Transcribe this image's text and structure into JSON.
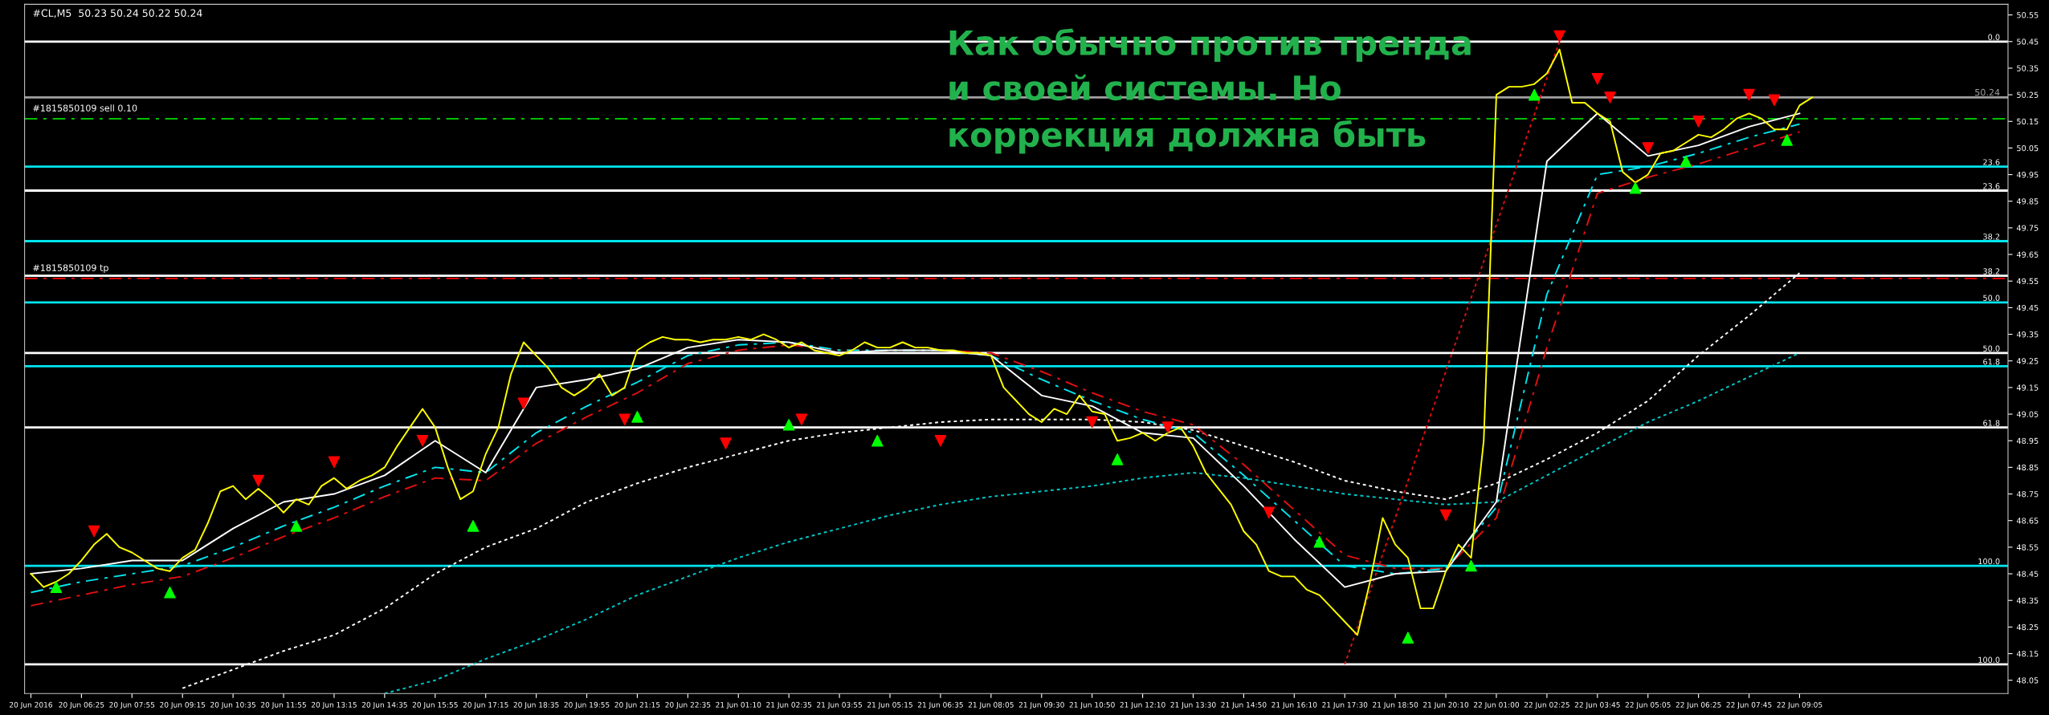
{
  "chart_data": {
    "type": "line",
    "title": "#CL,M5  50.23 50.24 50.22 50.24",
    "annotations": [
      "Как обычно против тренда\nи своей системы. Но\nкоррекция должна быть",
      {
        "text": "0.0",
        "y": 50.45
      },
      {
        "text": "23.6",
        "y": 49.89
      },
      {
        "text": "38.2",
        "y": 49.57
      },
      {
        "text": "50.0",
        "y": 49.28
      },
      {
        "text": "61.8",
        "y": 49.0
      },
      {
        "text": "100.0",
        "y": 48.11
      },
      {
        "text": "23.6",
        "y": 49.98
      },
      {
        "text": "38.2",
        "y": 49.7
      },
      {
        "text": "50.0",
        "y": 49.47
      },
      {
        "text": "61.8",
        "y": 49.23
      },
      {
        "text": "100.0",
        "y": 48.48
      }
    ],
    "categories": [
      "20 Jun 2016",
      null,
      null,
      null,
      "20 Jun 06:25",
      null,
      null,
      null,
      "20 Jun 07:55",
      null,
      null,
      null,
      "20 Jun 09:15",
      null,
      null,
      null,
      "20 Jun 10:35",
      null,
      null,
      null,
      "20 Jun 11:55",
      null,
      null,
      null,
      "20 Jun 13:15",
      null,
      null,
      null,
      "20 Jun 14:35",
      null,
      null,
      null,
      "20 Jun 15:55",
      null,
      null,
      null,
      "20 Jun 17:15",
      null,
      null,
      null,
      "20 Jun 18:35",
      null,
      null,
      null,
      "20 Jun 19:55",
      null,
      null,
      null,
      "20 Jun 21:15",
      null,
      null,
      null,
      "20 Jun 22:35",
      null,
      null,
      null,
      "21 Jun 01:10",
      null,
      null,
      null,
      "21 Jun 02:35",
      null,
      null,
      null,
      "21 Jun 03:55",
      null,
      null,
      null,
      "21 Jun 05:15",
      null,
      null,
      null,
      "21 Jun 06:35",
      null,
      null,
      null,
      "21 Jun 08:05",
      null,
      null,
      null,
      "21 Jun 09:30",
      null,
      null,
      null,
      "21 Jun 10:50",
      null,
      null,
      null,
      "21 Jun 12:10",
      null,
      null,
      null,
      "21 Jun 13:30",
      null,
      null,
      null,
      "21 Jun 14:50",
      null,
      null,
      null,
      "21 Jun 16:10",
      null,
      null,
      null,
      "21 Jun 17:30",
      null,
      null,
      null,
      "21 Jun 18:50",
      null,
      null,
      null,
      "21 Jun 20:10",
      null,
      null,
      null,
      "22 Jun 01:00",
      null,
      null,
      null,
      "22 Jun 02:25",
      null,
      null,
      null,
      "22 Jun 03:45",
      null,
      null,
      null,
      "22 Jun 05:05",
      null,
      null,
      null,
      "22 Jun 06:25",
      null,
      null,
      null,
      "22 Jun 07:45",
      null,
      null,
      null,
      "22 Jun 09:05",
      null,
      null,
      null,
      null,
      null,
      null,
      null,
      null,
      null,
      null,
      null,
      null,
      null,
      null,
      null,
      null
    ],
    "series": [
      {
        "color": "#ffff00",
        "values": [
          48.45,
          48.4,
          48.42,
          48.45,
          48.5,
          48.56,
          48.6,
          48.55,
          48.53,
          48.5,
          48.47,
          48.46,
          48.51,
          48.54,
          48.64,
          48.76,
          48.78,
          48.73,
          48.77,
          48.73,
          48.68,
          48.73,
          48.71,
          48.78,
          48.81,
          48.77,
          48.8,
          48.82,
          48.85,
          48.93,
          49.0,
          49.07,
          49.0,
          48.85,
          48.73,
          48.76,
          48.9,
          49.0,
          49.2,
          49.32,
          49.27,
          49.22,
          49.15,
          49.12,
          49.15,
          49.2,
          49.12,
          49.15,
          49.29,
          49.32,
          49.34,
          49.33,
          49.33,
          49.32,
          49.33,
          49.33,
          49.34,
          49.33,
          49.35,
          49.33,
          49.3,
          49.32,
          49.29,
          49.28,
          49.27,
          49.29,
          49.32,
          49.3,
          49.3,
          49.32,
          49.3,
          49.3,
          49.29,
          49.29,
          49.28,
          49.28,
          49.27,
          49.15,
          49.1,
          49.05,
          49.02,
          49.07,
          49.05,
          49.12,
          49.06,
          49.05,
          48.95,
          48.96,
          48.98,
          48.95,
          48.98,
          49.0,
          48.93,
          48.83,
          48.77,
          48.71,
          48.61,
          48.56,
          48.46,
          48.44,
          48.44,
          48.39,
          48.37,
          48.32,
          48.27,
          48.22,
          48.42,
          48.66,
          48.56,
          48.51,
          48.32,
          48.32,
          48.46,
          48.56,
          48.51,
          48.95,
          50.25,
          50.28,
          50.28,
          50.29,
          50.33,
          50.42,
          50.22,
          50.22,
          50.18,
          50.15,
          49.96,
          49.92,
          49.95,
          50.03,
          50.04,
          50.07,
          50.1,
          50.09,
          50.12,
          50.16,
          50.18,
          50.16,
          50.12,
          50.12,
          50.21,
          50.24,
          null,
          null,
          null,
          null,
          null,
          null,
          null,
          null,
          null,
          null,
          null,
          null,
          null,
          null,
          null
        ]
      },
      {
        "type": "line",
        "color": "#ffffff",
        "values": [
          48.45,
          null,
          null,
          null,
          48.47,
          null,
          null,
          null,
          48.5,
          null,
          null,
          null,
          48.5,
          null,
          null,
          null,
          48.62,
          null,
          null,
          null,
          48.72,
          null,
          null,
          null,
          48.75,
          null,
          null,
          null,
          48.82,
          null,
          null,
          null,
          48.95,
          null,
          null,
          null,
          48.83,
          null,
          null,
          null,
          49.15,
          null,
          null,
          null,
          49.18,
          null,
          null,
          null,
          49.22,
          null,
          null,
          null,
          49.3,
          null,
          null,
          null,
          49.33,
          null,
          null,
          null,
          49.32,
          null,
          null,
          null,
          49.28,
          null,
          null,
          null,
          49.29,
          null,
          null,
          null,
          49.29,
          null,
          null,
          null,
          49.27,
          null,
          null,
          null,
          49.12,
          null,
          null,
          null,
          49.08,
          null,
          null,
          null,
          48.98,
          null,
          null,
          null,
          48.96,
          null,
          null,
          null,
          48.78,
          null,
          null,
          null,
          48.58,
          null,
          null,
          null,
          48.4,
          null,
          null,
          null,
          48.45,
          null,
          null,
          null,
          48.46,
          null,
          null,
          null,
          48.72,
          null,
          null,
          null,
          50.0,
          null,
          null,
          null,
          50.18,
          null,
          null,
          null,
          50.02,
          null,
          null,
          null,
          50.06,
          null,
          null,
          null,
          50.13,
          null,
          null,
          null,
          50.18,
          null,
          null,
          null,
          null,
          null,
          null,
          null,
          null,
          null,
          null,
          null,
          null,
          null,
          null,
          null,
          null
        ]
      },
      {
        "type": "line",
        "color": "#00e5ee",
        "line_style": "dashed",
        "values": [
          48.38,
          null,
          null,
          null,
          48.42,
          null,
          null,
          null,
          48.45,
          null,
          null,
          null,
          48.48,
          null,
          null,
          null,
          48.55,
          null,
          null,
          null,
          48.63,
          null,
          null,
          null,
          48.7,
          null,
          null,
          null,
          48.78,
          null,
          null,
          null,
          48.85,
          null,
          null,
          null,
          48.83,
          null,
          null,
          null,
          48.98,
          null,
          null,
          null,
          49.08,
          null,
          null,
          null,
          49.17,
          null,
          null,
          null,
          49.27,
          null,
          null,
          null,
          49.31,
          null,
          null,
          null,
          49.32,
          null,
          null,
          null,
          49.29,
          null,
          null,
          null,
          49.29,
          null,
          null,
          null,
          49.29,
          null,
          null,
          null,
          49.27,
          null,
          null,
          null,
          49.18,
          null,
          null,
          null,
          49.1,
          null,
          null,
          null,
          49.03,
          null,
          null,
          null,
          48.98,
          null,
          null,
          null,
          48.82,
          null,
          null,
          null,
          48.65,
          null,
          null,
          null,
          48.48,
          null,
          null,
          null,
          48.45,
          null,
          null,
          null,
          48.47,
          null,
          null,
          null,
          48.7,
          null,
          null,
          null,
          49.5,
          null,
          null,
          null,
          49.95,
          null,
          null,
          null,
          49.98,
          null,
          null,
          null,
          50.03,
          null,
          null,
          null,
          50.09,
          null,
          null,
          null,
          50.14,
          null,
          null,
          null,
          null,
          null,
          null,
          null,
          null,
          null,
          null,
          null,
          null,
          null,
          null,
          null,
          null
        ]
      },
      {
        "type": "line",
        "color": "#e01010",
        "line_style": "dashed",
        "values": [
          48.33,
          null,
          null,
          null,
          48.37,
          null,
          null,
          null,
          48.41,
          null,
          null,
          null,
          48.44,
          null,
          null,
          null,
          48.51,
          null,
          null,
          null,
          48.59,
          null,
          null,
          null,
          48.66,
          null,
          null,
          null,
          48.74,
          null,
          null,
          null,
          48.81,
          null,
          null,
          null,
          48.8,
          null,
          null,
          null,
          48.94,
          null,
          null,
          null,
          49.04,
          null,
          null,
          null,
          49.13,
          null,
          null,
          null,
          49.24,
          null,
          null,
          null,
          49.29,
          null,
          null,
          null,
          49.31,
          null,
          null,
          null,
          49.29,
          null,
          null,
          null,
          49.29,
          null,
          null,
          null,
          49.29,
          null,
          null,
          null,
          49.28,
          null,
          null,
          null,
          49.21,
          null,
          null,
          null,
          49.13,
          null,
          null,
          null,
          49.06,
          null,
          null,
          null,
          49.01,
          null,
          null,
          null,
          48.86,
          null,
          null,
          null,
          48.69,
          null,
          null,
          null,
          48.52,
          null,
          null,
          null,
          48.47,
          null,
          null,
          null,
          48.47,
          null,
          null,
          null,
          48.66,
          null,
          null,
          null,
          49.3,
          null,
          null,
          null,
          49.88,
          null,
          null,
          null,
          49.94,
          null,
          null,
          null,
          49.99,
          null,
          null,
          null,
          50.05,
          null,
          null,
          null,
          50.11,
          null,
          null,
          null,
          null,
          null,
          null,
          null,
          null,
          null,
          null,
          null,
          null,
          null,
          null,
          null,
          null
        ]
      },
      {
        "type": "line",
        "color": "#ffffff",
        "line_style": "dotted",
        "values": [
          null,
          null,
          null,
          null,
          null,
          null,
          null,
          null,
          null,
          null,
          null,
          null,
          48.02,
          null,
          null,
          null,
          48.09,
          null,
          null,
          null,
          48.16,
          null,
          null,
          null,
          48.22,
          null,
          null,
          null,
          48.32,
          null,
          null,
          null,
          48.45,
          null,
          null,
          null,
          48.55,
          null,
          null,
          null,
          48.62,
          null,
          null,
          null,
          48.72,
          null,
          null,
          null,
          48.79,
          null,
          null,
          null,
          48.85,
          null,
          null,
          null,
          48.9,
          null,
          null,
          null,
          48.95,
          null,
          null,
          null,
          48.98,
          null,
          null,
          null,
          49.0,
          null,
          null,
          null,
          49.02,
          null,
          null,
          null,
          49.03,
          null,
          null,
          null,
          49.03,
          null,
          null,
          null,
          49.03,
          null,
          null,
          null,
          49.02,
          null,
          null,
          null,
          48.99,
          null,
          null,
          null,
          48.93,
          null,
          null,
          null,
          48.87,
          null,
          null,
          null,
          48.8,
          null,
          null,
          null,
          48.76,
          null,
          null,
          null,
          48.73,
          null,
          null,
          null,
          48.79,
          null,
          null,
          null,
          48.88,
          null,
          null,
          null,
          48.98,
          null,
          null,
          null,
          49.1,
          null,
          null,
          null,
          49.27,
          null,
          null,
          null,
          49.42,
          null,
          null,
          null,
          49.58,
          null,
          null,
          null,
          null,
          null,
          null,
          null,
          null,
          null,
          null,
          null,
          null,
          null,
          null,
          null,
          null
        ]
      },
      {
        "type": "line",
        "color": "#00c8c8",
        "line_style": "dotted",
        "values": [
          null,
          null,
          null,
          null,
          null,
          null,
          null,
          null,
          null,
          null,
          null,
          null,
          null,
          null,
          null,
          null,
          null,
          null,
          null,
          null,
          null,
          null,
          null,
          null,
          null,
          null,
          null,
          null,
          48.0,
          null,
          null,
          null,
          48.05,
          null,
          null,
          null,
          48.13,
          null,
          null,
          null,
          48.2,
          null,
          null,
          null,
          48.28,
          null,
          null,
          null,
          48.37,
          null,
          null,
          null,
          48.44,
          null,
          null,
          null,
          48.51,
          null,
          null,
          null,
          48.57,
          null,
          null,
          null,
          48.62,
          null,
          null,
          null,
          48.67,
          null,
          null,
          null,
          48.71,
          null,
          null,
          null,
          48.74,
          null,
          null,
          null,
          48.76,
          null,
          null,
          null,
          48.78,
          null,
          null,
          null,
          48.81,
          null,
          null,
          null,
          48.83,
          null,
          null,
          null,
          48.81,
          null,
          null,
          null,
          48.78,
          null,
          null,
          null,
          48.75,
          null,
          null,
          null,
          48.73,
          null,
          null,
          null,
          48.71,
          null,
          null,
          null,
          48.72,
          null,
          null,
          null,
          48.82,
          null,
          null,
          null,
          48.92,
          null,
          null,
          null,
          49.02,
          null,
          null,
          null,
          49.1,
          null,
          null,
          null,
          49.19,
          null,
          null,
          null,
          49.28,
          null,
          null,
          null,
          null,
          null,
          null,
          null,
          null,
          null,
          null,
          null,
          null,
          null,
          null,
          null,
          null
        ]
      },
      {
        "type": "line",
        "color": "#e01010",
        "line_style": "dotted",
        "values": [
          null,
          null,
          null,
          null,
          null,
          null,
          null,
          null,
          null,
          null,
          null,
          null,
          null,
          null,
          null,
          null,
          null,
          null,
          null,
          null,
          null,
          null,
          null,
          null,
          null,
          null,
          null,
          null,
          null,
          null,
          null,
          null,
          null,
          null,
          null,
          null,
          null,
          null,
          null,
          null,
          null,
          null,
          null,
          null,
          null,
          null,
          null,
          null,
          null,
          null,
          null,
          null,
          null,
          null,
          null,
          null,
          null,
          null,
          null,
          null,
          null,
          null,
          null,
          null,
          null,
          null,
          null,
          null,
          null,
          null,
          null,
          null,
          null,
          null,
          null,
          null,
          null,
          null,
          null,
          null,
          null,
          null,
          null,
          null,
          null,
          null,
          null,
          null,
          null,
          null,
          null,
          null,
          null,
          null,
          null,
          null,
          null,
          null,
          null,
          null,
          null,
          null,
          null,
          null,
          48.11,
          null,
          null,
          null,
          null,
          null,
          null,
          null,
          null,
          null,
          null,
          null,
          null,
          null,
          null,
          null,
          null,
          50.45,
          null,
          null,
          null,
          null,
          null,
          null,
          null,
          null,
          null,
          null,
          null,
          null,
          null,
          null,
          null,
          null,
          null,
          null,
          null,
          null,
          null,
          null,
          null,
          null,
          null,
          null,
          null,
          null,
          null,
          null,
          null,
          null,
          null,
          null,
          null
        ]
      },
      {
        "type": "scatter",
        "color": "#ff0000",
        "marker": "triangle_down",
        "values": [
          null,
          null,
          null,
          null,
          null,
          48.61,
          null,
          null,
          null,
          null,
          null,
          null,
          null,
          null,
          null,
          null,
          null,
          null,
          48.8,
          null,
          null,
          null,
          null,
          null,
          48.87,
          null,
          null,
          null,
          null,
          null,
          null,
          48.95,
          null,
          null,
          null,
          null,
          null,
          null,
          null,
          49.09,
          null,
          null,
          null,
          null,
          null,
          null,
          null,
          49.03,
          null,
          null,
          null,
          null,
          null,
          null,
          null,
          48.94,
          null,
          null,
          null,
          null,
          null,
          49.03,
          null,
          null,
          null,
          null,
          null,
          null,
          null,
          null,
          null,
          null,
          48.95,
          null,
          null,
          null,
          null,
          null,
          null,
          null,
          null,
          null,
          null,
          null,
          49.02,
          null,
          null,
          null,
          null,
          null,
          49.0,
          null,
          null,
          null,
          null,
          null,
          null,
          null,
          48.68,
          null,
          null,
          null,
          null,
          null,
          null,
          null,
          null,
          null,
          null,
          null,
          null,
          null,
          48.67,
          null,
          null,
          null,
          null,
          null,
          null,
          null,
          null,
          50.47,
          null,
          null,
          50.31,
          50.24,
          null,
          null,
          50.05,
          null,
          null,
          null,
          50.15,
          null,
          null,
          null,
          50.25,
          null,
          50.23,
          null,
          null,
          null,
          null,
          null,
          null,
          null,
          null,
          null,
          null,
          null,
          null,
          null,
          null,
          null,
          null,
          null,
          null
        ]
      },
      {
        "type": "scatter",
        "color": "#00ff00",
        "marker": "triangle",
        "values": [
          null,
          null,
          48.4,
          null,
          null,
          null,
          null,
          null,
          null,
          null,
          null,
          48.38,
          null,
          null,
          null,
          null,
          null,
          null,
          null,
          null,
          null,
          48.63,
          null,
          null,
          null,
          null,
          null,
          null,
          null,
          null,
          null,
          null,
          null,
          null,
          null,
          48.63,
          null,
          null,
          null,
          null,
          null,
          null,
          null,
          null,
          null,
          null,
          null,
          null,
          49.04,
          null,
          null,
          null,
          null,
          null,
          null,
          null,
          null,
          null,
          null,
          null,
          49.01,
          null,
          null,
          null,
          null,
          null,
          null,
          48.95,
          null,
          null,
          null,
          null,
          null,
          null,
          null,
          null,
          null,
          null,
          null,
          null,
          null,
          null,
          null,
          null,
          null,
          null,
          48.88,
          null,
          null,
          null,
          null,
          null,
          null,
          null,
          null,
          null,
          null,
          null,
          null,
          null,
          null,
          null,
          48.57,
          null,
          null,
          null,
          null,
          null,
          null,
          48.21,
          null,
          null,
          null,
          null,
          48.48,
          null,
          null,
          null,
          null,
          50.25,
          null,
          null,
          null,
          null,
          null,
          null,
          null,
          49.9,
          null,
          null,
          null,
          50.0,
          null,
          null,
          null,
          null,
          null,
          null,
          null,
          50.08,
          null,
          null,
          null,
          null,
          null,
          null,
          null,
          null,
          null,
          null,
          null,
          null,
          null,
          null,
          null,
          null,
          null
        ]
      }
    ],
    "ref_lines": [
      {
        "axis": "y",
        "value": 50.24,
        "label": "50.24",
        "color": "#a0a0a0",
        "line_style": "solid"
      },
      {
        "axis": "y",
        "value": 50.16,
        "label": "#1815850109 sell 0.10",
        "color": "#00c000",
        "line_style": "dashed"
      },
      {
        "axis": "y",
        "value": 49.56,
        "label": "#1815850109 tp",
        "color": "#e00000",
        "line_style": "dashed"
      },
      {
        "axis": "y",
        "value": 50.45,
        "color": "#ffffff",
        "line_style": "solid"
      },
      {
        "axis": "y",
        "value": 49.89,
        "color": "#ffffff",
        "line_style": "solid"
      },
      {
        "axis": "y",
        "value": 49.57,
        "color": "#ffffff",
        "line_style": "solid"
      },
      {
        "axis": "y",
        "value": 49.28,
        "color": "#ffffff",
        "line_style": "solid"
      },
      {
        "axis": "y",
        "value": 49.0,
        "color": "#ffffff",
        "line_style": "solid"
      },
      {
        "axis": "y",
        "value": 48.11,
        "color": "#ffffff",
        "line_style": "solid"
      },
      {
        "axis": "y",
        "value": 49.98,
        "color": "#00e5ee",
        "line_style": "solid"
      },
      {
        "axis": "y",
        "value": 49.7,
        "color": "#00e5ee",
        "line_style": "solid"
      },
      {
        "axis": "y",
        "value": 49.47,
        "color": "#00e5ee",
        "line_style": "solid"
      },
      {
        "axis": "y",
        "value": 49.23,
        "color": "#00e5ee",
        "line_style": "solid"
      },
      {
        "axis": "y",
        "value": 48.48,
        "color": "#00e5ee",
        "line_style": "solid"
      }
    ],
    "ylim": [
      48.0,
      50.59
    ],
    "yticks": [
      48.05,
      48.15,
      48.25,
      48.35,
      48.45,
      48.55,
      48.65,
      48.75,
      48.85,
      48.95,
      49.05,
      49.15,
      49.25,
      49.35,
      49.45,
      49.55,
      49.65,
      49.75,
      49.85,
      49.95,
      50.05,
      50.15,
      50.25,
      50.35,
      50.45,
      50.55
    ],
    "grid": false,
    "legend": false
  }
}
